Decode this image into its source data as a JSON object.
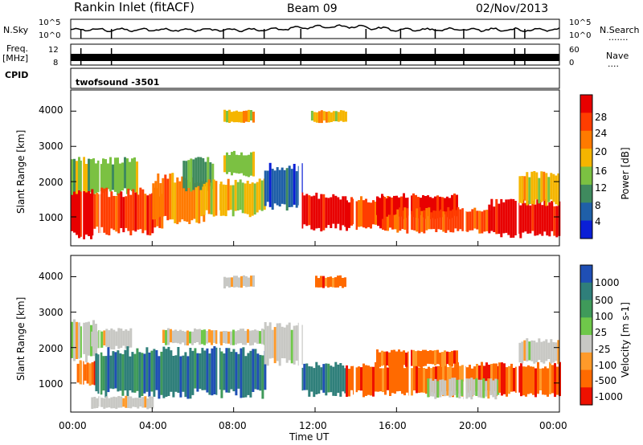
{
  "header": {
    "station": "Rankin Inlet (fitACF)",
    "beam": "Beam 09",
    "date": "02/Nov/2013"
  },
  "noise_panel": {
    "left_label": "N.Sky",
    "right_label": "N.Search",
    "left_ticks": [
      "10^5",
      "10^0"
    ],
    "right_ticks": [
      "10^5",
      "10^0"
    ]
  },
  "freq_panel": {
    "left_label_1": "Freq.",
    "left_label_2": "[MHz]",
    "right_label": "Nave",
    "left_ticks": [
      "12",
      "8"
    ],
    "right_ticks": [
      "60",
      "0"
    ]
  },
  "cpid_panel": {
    "label": "CPID",
    "value": "twofsound -3501"
  },
  "axes": {
    "ylabel": "Slant Range [km]",
    "xlabel": "Time UT",
    "y_ticks": [
      "1000",
      "2000",
      "3000",
      "4000"
    ],
    "x_ticks": [
      "00:00",
      "04:00",
      "08:00",
      "12:00",
      "16:00",
      "20:00",
      "00:00"
    ]
  },
  "colorbars": {
    "power": {
      "label": "Power [dB]",
      "ticks": [
        "4",
        "8",
        "12",
        "16",
        "20",
        "24",
        "28"
      ],
      "colors": [
        "#0a1fd6",
        "#1f5fa8",
        "#3f8a5e",
        "#7bc142",
        "#f5b500",
        "#ff7a00",
        "#ff3d00",
        "#e80000"
      ]
    },
    "velocity": {
      "label": "Velocity [m s-1]",
      "ticks": [
        "1000",
        "500",
        "100",
        "25",
        "-25",
        "-100",
        "-500",
        "-1000"
      ],
      "colors": [
        "#1f4fb5",
        "#2f7f7a",
        "#3f9a5a",
        "#6fc84a",
        "#c8c8c4",
        "#ff9a2a",
        "#ff6a00",
        "#ee1100"
      ]
    }
  },
  "chart_data": {
    "type": "heatmap",
    "title": "",
    "xlabel": "Time UT",
    "ylabel": "Slant Range [km]",
    "xlim": [
      0,
      24
    ],
    "ylim": [
      180,
      4600
    ],
    "power_bands": [
      {
        "t0": 0.0,
        "t1": 1.0,
        "r0": 500,
        "r1": 1800,
        "level": 7
      },
      {
        "t0": 0.0,
        "t1": 3.2,
        "r0": 1700,
        "r1": 2600,
        "level": 3
      },
      {
        "t0": 1.0,
        "t1": 4.5,
        "r0": 600,
        "r1": 1700,
        "level": 6
      },
      {
        "t0": 4.0,
        "t1": 6.5,
        "r0": 900,
        "r1": 2100,
        "level": 5
      },
      {
        "t0": 5.5,
        "t1": 7.0,
        "r0": 1800,
        "r1": 2600,
        "level": 2
      },
      {
        "t0": 6.5,
        "t1": 9.5,
        "r0": 1100,
        "r1": 2000,
        "level": 4
      },
      {
        "t0": 7.5,
        "t1": 9.0,
        "r0": 2200,
        "r1": 2800,
        "level": 3
      },
      {
        "t0": 9.5,
        "t1": 11.3,
        "r0": 1300,
        "r1": 2400,
        "level": 1
      },
      {
        "t0": 11.3,
        "t1": 13.5,
        "r0": 700,
        "r1": 1600,
        "level": 7
      },
      {
        "t0": 13.5,
        "t1": 16.0,
        "r0": 700,
        "r1": 1500,
        "level": 6
      },
      {
        "t0": 15.0,
        "t1": 19.0,
        "r0": 1000,
        "r1": 1600,
        "level": 7
      },
      {
        "t0": 16.0,
        "t1": 20.5,
        "r0": 600,
        "r1": 1200,
        "level": 6
      },
      {
        "t0": 20.5,
        "t1": 24.0,
        "r0": 500,
        "r1": 1400,
        "level": 7
      },
      {
        "t0": 22.0,
        "t1": 24.0,
        "r0": 1400,
        "r1": 2200,
        "level": 4
      },
      {
        "t0": 7.5,
        "t1": 9.0,
        "r0": 3700,
        "r1": 4000,
        "level": 4
      },
      {
        "t0": 11.8,
        "t1": 13.5,
        "r0": 3700,
        "r1": 4000,
        "level": 4
      }
    ],
    "velocity_bands": [
      {
        "t0": 0.0,
        "t1": 1.2,
        "r0": 1700,
        "r1": 2700,
        "level": 4
      },
      {
        "t0": 0.3,
        "t1": 1.2,
        "r0": 1000,
        "r1": 1600,
        "level": 6
      },
      {
        "t0": 1.0,
        "t1": 3.0,
        "r0": 2000,
        "r1": 2500,
        "level": 4
      },
      {
        "t0": 1.2,
        "t1": 9.5,
        "r0": 700,
        "r1": 1900,
        "level": 1
      },
      {
        "t0": 4.5,
        "t1": 9.5,
        "r0": 2100,
        "r1": 2500,
        "level": 4
      },
      {
        "t0": 1.0,
        "t1": 4.0,
        "r0": 300,
        "r1": 600,
        "level": 4
      },
      {
        "t0": 9.5,
        "t1": 11.3,
        "r0": 1600,
        "r1": 2600,
        "level": 4
      },
      {
        "t0": 11.3,
        "t1": 13.5,
        "r0": 700,
        "r1": 1500,
        "level": 1
      },
      {
        "t0": 13.5,
        "t1": 21.0,
        "r0": 700,
        "r1": 1500,
        "level": 6
      },
      {
        "t0": 15.0,
        "t1": 19.0,
        "r0": 1500,
        "r1": 1900,
        "level": 6
      },
      {
        "t0": 17.5,
        "t1": 21.0,
        "r0": 600,
        "r1": 1100,
        "level": 4
      },
      {
        "t0": 21.0,
        "t1": 24.0,
        "r0": 700,
        "r1": 1500,
        "level": 6
      },
      {
        "t0": 22.0,
        "t1": 24.0,
        "r0": 1600,
        "r1": 2200,
        "level": 4
      },
      {
        "t0": 7.5,
        "t1": 9.0,
        "r0": 3700,
        "r1": 4000,
        "level": 4
      },
      {
        "t0": 12.0,
        "t1": 13.5,
        "r0": 3700,
        "r1": 4000,
        "level": 6
      }
    ]
  }
}
